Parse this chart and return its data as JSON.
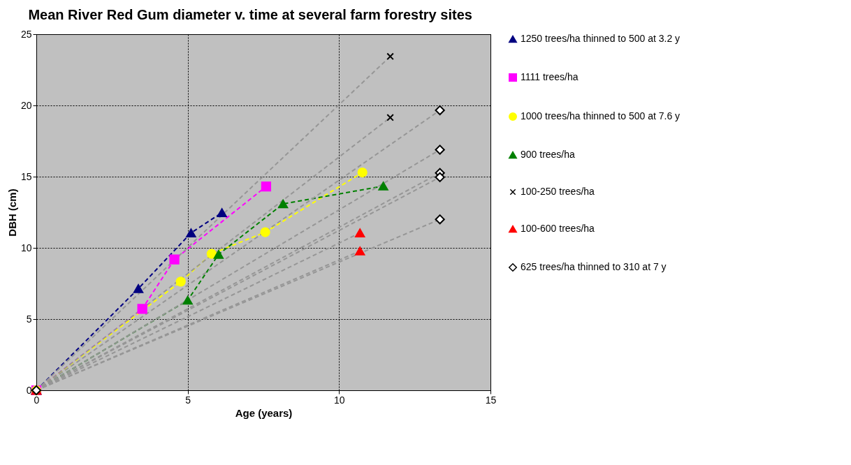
{
  "chart_data": {
    "type": "line",
    "title": "Mean River Red Gum diameter v. time at several farm forestry sites",
    "xlabel": "Age (years)",
    "ylabel": "DBH (cm)",
    "xlim": [
      0,
      15
    ],
    "xticks": [
      0,
      5,
      10,
      15
    ],
    "ylim": [
      0,
      25
    ],
    "yticks": [
      0,
      5,
      10,
      15,
      20,
      25
    ],
    "grid": true,
    "legend": "right",
    "line_style": "dashed",
    "series": [
      {
        "type": "line",
        "name": "1250 trees/ha thinned to 500 at 3.2 y",
        "color": "#000080",
        "marker": "triangle",
        "x": [
          0,
          3.37,
          5.11,
          6.13
        ],
        "values": [
          0,
          7.14,
          11.05,
          12.47
        ]
      },
      {
        "type": "line",
        "name": "1111 trees/ha",
        "color": "#ff00ff",
        "marker": "square",
        "x": [
          0,
          3.5,
          4.56,
          7.59
        ],
        "values": [
          0,
          5.72,
          9.18,
          14.31
        ]
      },
      {
        "type": "line",
        "name": "1000 trees/ha thinned to 500 at 7.6 y",
        "color": "#ffff00",
        "marker": "circle",
        "x": [
          0,
          4.77,
          5.79,
          7.56,
          10.77
        ],
        "values": [
          0,
          7.63,
          9.58,
          11.1,
          15.29
        ]
      },
      {
        "type": "line",
        "name": "900 trees/ha",
        "color": "#008000",
        "marker": "triangle",
        "x": [
          0,
          5.0,
          6.02,
          8.15,
          11.46
        ],
        "values": [
          0,
          6.32,
          9.54,
          13.09,
          14.34
        ]
      },
      {
        "type": "line",
        "color": "#969696",
        "marker": "none",
        "x": [
          0,
          11.69
        ],
        "values": [
          0,
          23.44
        ]
      },
      {
        "type": "line",
        "color": "#969696",
        "marker": "none",
        "x": [
          0,
          11.69
        ],
        "values": [
          0,
          19.15
        ]
      },
      {
        "type": "line",
        "color": "#969696",
        "marker": "none",
        "x": [
          0,
          10.69
        ],
        "values": [
          0,
          11.05
        ]
      },
      {
        "type": "line",
        "color": "#969696",
        "marker": "none",
        "x": [
          0,
          10.69
        ],
        "values": [
          0,
          9.78
        ]
      },
      {
        "type": "line",
        "color": "#969696",
        "marker": "none",
        "x": [
          0,
          13.33
        ],
        "values": [
          0,
          19.66
        ]
      },
      {
        "type": "line",
        "color": "#969696",
        "marker": "none",
        "x": [
          0,
          13.33
        ],
        "values": [
          0,
          16.89
        ]
      },
      {
        "type": "line",
        "color": "#969696",
        "marker": "none",
        "x": [
          0,
          13.33
        ],
        "values": [
          0,
          15.26
        ]
      },
      {
        "type": "line",
        "color": "#969696",
        "marker": "none",
        "x": [
          0,
          13.33
        ],
        "values": [
          0,
          14.96
        ]
      },
      {
        "type": "line",
        "color": "#969696",
        "marker": "none",
        "x": [
          0,
          13.33
        ],
        "values": [
          0,
          12.0
        ]
      },
      {
        "type": "scatter",
        "name": "100-250 trees/ha",
        "color": "#000000",
        "marker": "cross",
        "x": [
          11.69,
          11.69
        ],
        "values": [
          23.44,
          19.15
        ]
      },
      {
        "type": "scatter",
        "name": "100-600 trees/ha",
        "color": "#ff0000",
        "marker": "triangle",
        "x": [
          0,
          10.69,
          10.69
        ],
        "values": [
          0,
          11.05,
          9.78
        ]
      },
      {
        "type": "scatter",
        "name": "625 trees/ha thinned to 310 at 7 y",
        "color": "#ffffff",
        "marker": "diamond",
        "x": [
          0,
          13.33,
          13.33,
          13.33,
          13.33,
          13.33
        ],
        "values": [
          0,
          19.66,
          16.89,
          15.26,
          14.96,
          12.0
        ]
      }
    ]
  }
}
